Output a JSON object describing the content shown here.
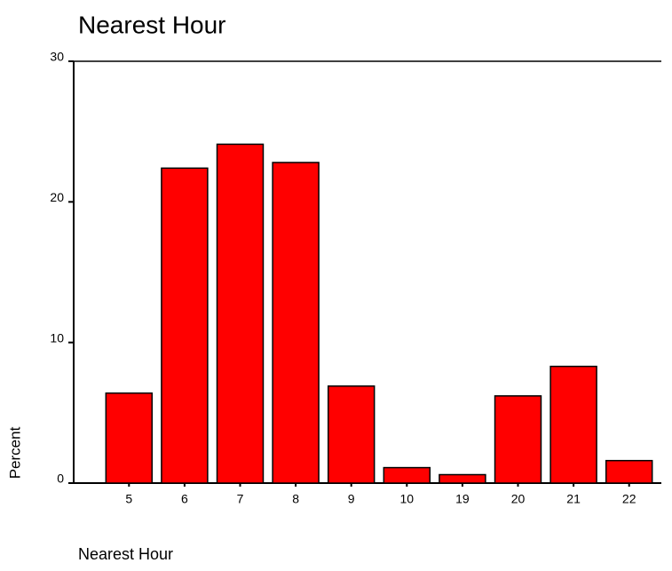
{
  "chart_data": {
    "type": "bar",
    "title": "Nearest Hour",
    "x_label": "Nearest Hour",
    "y_label": "Percent",
    "categories": [
      "5",
      "6",
      "7",
      "8",
      "9",
      "10",
      "19",
      "20",
      "21",
      "22"
    ],
    "values": [
      6.4,
      22.4,
      24.1,
      22.8,
      6.9,
      1.1,
      0.6,
      6.2,
      8.3,
      1.6
    ],
    "color": "#ff0000",
    "ylim": [
      0,
      30
    ],
    "yticks": [
      0,
      10,
      20,
      30
    ],
    "grid": false
  }
}
